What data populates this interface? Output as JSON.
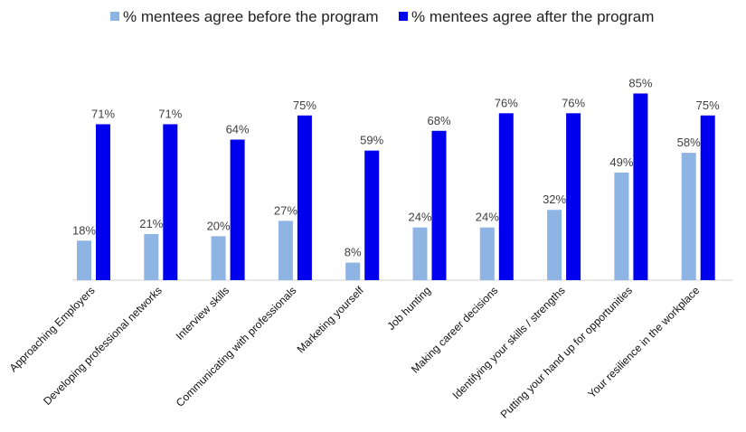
{
  "chart_data": {
    "type": "bar",
    "title": "",
    "xlabel": "",
    "ylabel": "",
    "ylim": [
      0,
      90
    ],
    "grid": false,
    "legend_position": "top-center",
    "categories": [
      "Approaching Employers",
      "Developing professional networks",
      "Interview skills",
      "Communicating with professionals",
      "Marketing yourself",
      "Job hunting",
      "Making career decisions",
      "Identifying your skills / strengths",
      "Putting your hand up for opportunities",
      "Your resilience in the workplace"
    ],
    "series": [
      {
        "name": "% mentees agree before the program",
        "color": "#8eb4e3",
        "values": [
          18,
          21,
          20,
          27,
          8,
          24,
          24,
          32,
          49,
          58
        ],
        "labels": [
          "18%",
          "21%",
          "20%",
          "27%",
          "8%",
          "24%",
          "24%",
          "32%",
          "49%",
          "58%"
        ]
      },
      {
        "name": "% mentees agree after the program",
        "color": "#0000ee",
        "values": [
          71,
          71,
          64,
          75,
          59,
          68,
          76,
          76,
          85,
          75
        ],
        "labels": [
          "71%",
          "71%",
          "64%",
          "75%",
          "59%",
          "68%",
          "76%",
          "76%",
          "85%",
          "75%"
        ]
      }
    ]
  }
}
